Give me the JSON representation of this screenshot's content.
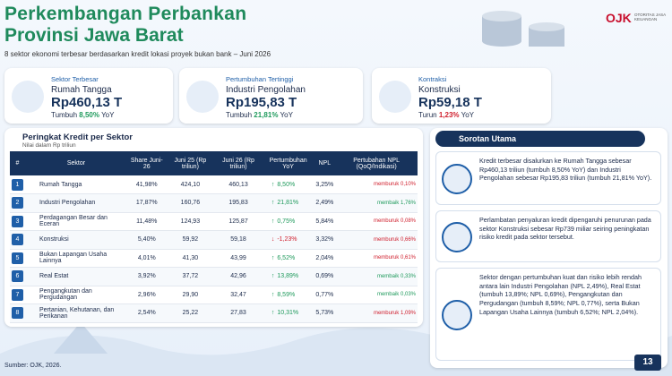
{
  "header": {
    "title_line1": "Perkembangan Perbankan",
    "title_line2": "Provinsi Jawa Barat",
    "subtitle": "8 sektor ekonomi terbesar berdasarkan kredit lokasi proyek bukan bank – Juni 2026",
    "logo": "OJK",
    "logo_text": "OTORITAS JASA KEUANGAN"
  },
  "cards": [
    {
      "label": "Sektor Terbesar",
      "name": "Rumah Tangga",
      "value": "Rp460,13 T",
      "note": "Tumbuh",
      "highlight": "8,50%",
      "suffix": "YoY"
    },
    {
      "label": "Pertumbuhan Tertinggi",
      "name": "Industri Pengolahan",
      "value": "Rp195,83 T",
      "note": "Tumbuh",
      "highlight": "21,81%",
      "suffix": "YoY"
    },
    {
      "label": "Kontraksi",
      "name": "Konstruksi",
      "value": "Rp59,18 T",
      "note": "Turun",
      "highlight": "1,23%",
      "suffix": "YoY"
    }
  ],
  "table": {
    "title": "Peringkat Kredit per Sektor",
    "subtitle": "Nilai dalam Rp triliun",
    "headers": [
      "#",
      "Sektor",
      "Share Juni-26",
      "Juni 25 (Rp triliun)",
      "Juni 26 (Rp triliun)",
      "Pertumbuhan YoY",
      "NPL",
      "Pertubahan NPL (QoQ/Indikasi)"
    ],
    "rows": [
      [
        "1",
        "Rumah Tangga",
        "41,98%",
        "424,10",
        "460,13",
        "8,50%",
        "3,25%",
        "memburuk 0,10%"
      ],
      [
        "2",
        "Industri Pengolahan",
        "17,87%",
        "160,76",
        "195,83",
        "21,81%",
        "2,49%",
        "membaik 1,76%"
      ],
      [
        "3",
        "Perdagangan Besar dan Eceran",
        "11,48%",
        "124,93",
        "125,87",
        "0,75%",
        "5,84%",
        "memburuk 0,08%"
      ],
      [
        "4",
        "Konstruksi",
        "5,40%",
        "59,92",
        "59,18",
        "-1,23%",
        "3,32%",
        "memburuk 0,66%"
      ],
      [
        "5",
        "Bukan Lapangan Usaha Lainnya",
        "4,01%",
        "41,30",
        "43,99",
        "6,52%",
        "2,04%",
        "memburuk 0,61%"
      ],
      [
        "6",
        "Real Estat",
        "3,92%",
        "37,72",
        "42,96",
        "13,89%",
        "0,69%",
        "membaik 0,33%"
      ],
      [
        "7",
        "Pengangkutan dan Pergudangan",
        "2,96%",
        "29,90",
        "32,47",
        "8,59%",
        "0,77%",
        "membaik 0,03%"
      ],
      [
        "8",
        "Pertanian, Kehutanan, dan Perikanan",
        "2,54%",
        "25,22",
        "27,83",
        "10,31%",
        "5,73%",
        "memburuk 1,09%"
      ]
    ]
  },
  "highlights": {
    "title": "Sorotan Utama",
    "items": [
      "Kredit terbesar disalurkan ke Rumah Tangga sebesar Rp460,13 triliun (tumbuh 8,50% YoY) dan Industri Pengolahan sebesar Rp195,83 triliun (tumbuh 21,81% YoY).",
      "Perlambatan penyaluran kredit dipengaruhi penurunan pada sektor Konstruksi sebesar Rp739 miliar seiring peningkatan risiko kredit pada sektor tersebut.",
      "Sektor dengan pertumbuhan kuat dan risiko lebih rendah antara lain Industri Pengolahan (NPL 2,49%), Real Estat (tumbuh 13,89%; NPL 0,69%), Pengangkutan dan Pergudangan (tumbuh 8,59%; NPL 0,77%), serta Bukan Lapangan Usaha Lainnya (tumbuh 6,52%; NPL 2,04%)."
    ]
  },
  "footer": {
    "source": "Sumber: OJK, 2026.",
    "page": "13"
  }
}
